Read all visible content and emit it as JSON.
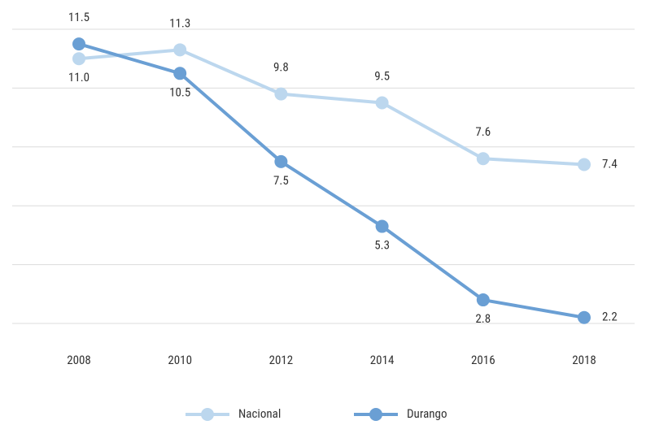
{
  "chart_data": {
    "type": "line",
    "x": [
      "2008",
      "2010",
      "2012",
      "2014",
      "2016",
      "2018"
    ],
    "series": [
      {
        "name": "Nacional",
        "color": "#bcd7ee",
        "values": [
          11.0,
          11.3,
          9.8,
          9.5,
          7.6,
          7.4
        ]
      },
      {
        "name": "Durango",
        "color": "#6a9fd4",
        "values": [
          11.5,
          10.5,
          7.5,
          5.3,
          2.8,
          2.2
        ]
      }
    ],
    "ylim": [
      2,
      12
    ],
    "yticks": [
      2,
      4,
      6,
      8,
      10,
      12
    ],
    "grid": true,
    "legend": "bottom"
  }
}
